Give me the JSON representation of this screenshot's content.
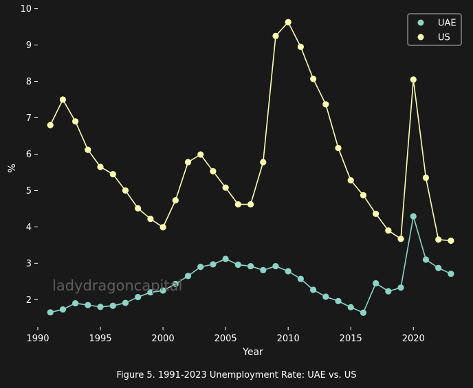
{
  "chart_data": {
    "type": "line",
    "xlabel": "Year",
    "ylabel": "%",
    "xlim": [
      1990,
      2023.5
    ],
    "ylim": [
      1.25,
      10.05
    ],
    "x_ticks": [
      1990,
      1995,
      2000,
      2005,
      2010,
      2015,
      2020
    ],
    "y_ticks": [
      2,
      3,
      4,
      5,
      6,
      7,
      8,
      9,
      10
    ],
    "grid": false,
    "legend_position": "top-right",
    "x": [
      1991,
      1992,
      1993,
      1994,
      1995,
      1996,
      1997,
      1998,
      1999,
      2000,
      2001,
      2002,
      2003,
      2004,
      2005,
      2006,
      2007,
      2008,
      2009,
      2010,
      2011,
      2012,
      2013,
      2014,
      2015,
      2016,
      2017,
      2018,
      2019,
      2020,
      2021,
      2022,
      2023
    ],
    "series": [
      {
        "name": "UAE",
        "color": "#8dd3c7",
        "values": [
          1.65,
          1.73,
          1.9,
          1.85,
          1.8,
          1.83,
          1.91,
          2.07,
          2.2,
          2.25,
          2.43,
          2.65,
          2.9,
          2.97,
          3.12,
          2.96,
          2.92,
          2.81,
          2.92,
          2.78,
          2.57,
          2.27,
          2.08,
          1.96,
          1.79,
          1.64,
          2.45,
          2.23,
          2.33,
          4.29,
          3.1,
          2.87,
          2.71
        ]
      },
      {
        "name": "US",
        "color": "#ffffb3",
        "values": [
          6.8,
          7.5,
          6.9,
          6.12,
          5.65,
          5.45,
          5.0,
          4.51,
          4.22,
          3.99,
          4.73,
          5.78,
          5.99,
          5.53,
          5.08,
          4.62,
          4.62,
          5.78,
          9.25,
          9.63,
          8.95,
          8.07,
          7.37,
          6.17,
          5.28,
          4.87,
          4.36,
          3.9,
          3.67,
          8.05,
          5.35,
          3.65,
          3.62
        ]
      }
    ],
    "watermark": "ladydragoncapital"
  },
  "caption": "Figure 5. 1991-2023 Unemployment Rate: UAE vs. US"
}
